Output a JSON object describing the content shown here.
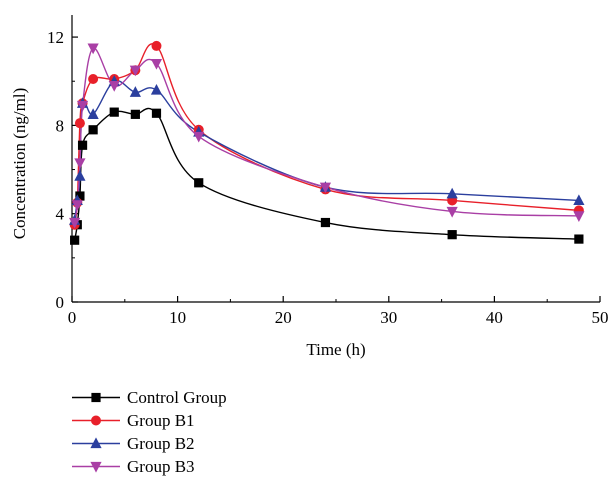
{
  "chart_data": {
    "type": "line",
    "xlabel": "Time (h)",
    "ylabel": "Concentration (ng/ml)",
    "xlim": [
      0,
      50
    ],
    "ylim": [
      0,
      13
    ],
    "x_ticks": [
      "0",
      "10",
      "20",
      "30",
      "40",
      "50"
    ],
    "y_ticks": [
      "0",
      "4",
      "8",
      "12"
    ],
    "grid": false,
    "legend_position": "bottom-left",
    "series": [
      {
        "name": "Control Group",
        "color": "#000000",
        "marker": "square",
        "x": [
          0.25,
          0.5,
          0.75,
          1,
          2,
          4,
          6,
          8,
          12,
          24,
          36,
          48
        ],
        "y": [
          2.8,
          3.5,
          4.8,
          7.1,
          7.8,
          8.6,
          8.5,
          8.55,
          5.4,
          3.6,
          3.05,
          2.85
        ]
      },
      {
        "name": "Group B1",
        "color": "#e8202a",
        "marker": "circle",
        "x": [
          0.25,
          0.5,
          0.75,
          1,
          2,
          4,
          6,
          8,
          12,
          24,
          36,
          48
        ],
        "y": [
          3.5,
          4.5,
          8.1,
          9.0,
          10.1,
          10.1,
          10.5,
          11.6,
          7.8,
          5.1,
          4.6,
          4.15
        ]
      },
      {
        "name": "Group B2",
        "color": "#2b3f9e",
        "marker": "triangle-up",
        "x": [
          0.25,
          0.5,
          0.75,
          1,
          2,
          4,
          6,
          8,
          12,
          24,
          36,
          48
        ],
        "y": [
          3.7,
          4.6,
          5.7,
          9.0,
          8.5,
          10.0,
          9.5,
          9.6,
          7.7,
          5.2,
          4.9,
          4.6
        ]
      },
      {
        "name": "Group B3",
        "color": "#a93fa5",
        "marker": "triangle-down",
        "x": [
          0.25,
          0.5,
          0.75,
          1,
          2,
          4,
          6,
          8,
          12,
          24,
          36,
          48
        ],
        "y": [
          3.6,
          4.4,
          6.3,
          8.9,
          11.5,
          9.8,
          10.5,
          10.8,
          7.5,
          5.2,
          4.1,
          3.9
        ]
      }
    ]
  }
}
